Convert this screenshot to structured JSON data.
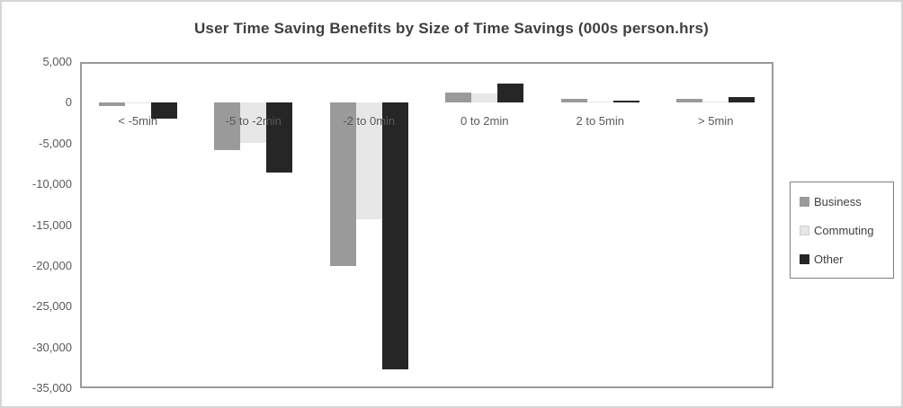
{
  "chart_data": {
    "type": "bar",
    "title": "User Time Saving Benefits by Size of Time Savings (000s person.hrs)",
    "categories": [
      "< -5min",
      "-5 to -2min",
      "-2 to 0min",
      "0 to 2min",
      "2 to 5min",
      "> 5min"
    ],
    "series": [
      {
        "name": "Business",
        "color": "#9a9a9a",
        "values": [
          -400,
          -5800,
          -20000,
          1300,
          500,
          500
        ]
      },
      {
        "name": "Commuting",
        "color": "#e7e7e7",
        "values": [
          -100,
          -4900,
          -14300,
          1100,
          100,
          100
        ]
      },
      {
        "name": "Other",
        "color": "#262626",
        "values": [
          -1900,
          -8500,
          -32700,
          2400,
          250,
          700
        ]
      }
    ],
    "ylim": [
      -35000,
      5000
    ],
    "ytick_step": 5000,
    "ytick_labels": [
      "5,000",
      "0",
      "-5,000",
      "-10,000",
      "-15,000",
      "-20,000",
      "-25,000",
      "-30,000",
      "-35,000"
    ],
    "grid": true,
    "legend_position": "right",
    "colors": {
      "gridline": "#d9d9d9",
      "plot_border": "#9a9a9a",
      "title_text": "#3f3f3f",
      "axis_text": "#595959"
    }
  }
}
